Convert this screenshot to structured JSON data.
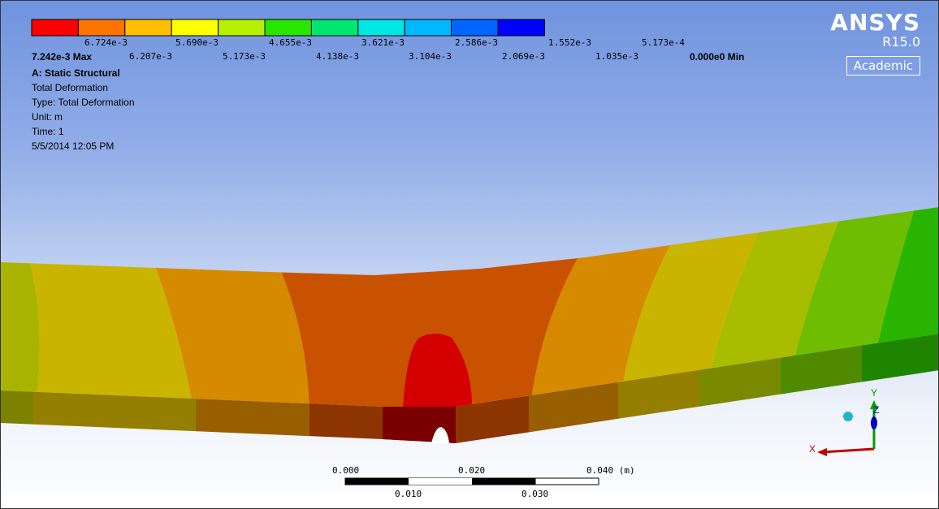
{
  "legend": {
    "colors": [
      "#ff0000",
      "#ff7300",
      "#ffbf00",
      "#ffff00",
      "#b7f000",
      "#29e600",
      "#00e66e",
      "#00e6e0",
      "#00b8ff",
      "#0066ff",
      "#0000ff"
    ],
    "top_labels": [
      "6.724e-3",
      "5.690e-3",
      "4.655e-3",
      "3.621e-3",
      "2.586e-3",
      "1.552e-3",
      "5.173e-4"
    ],
    "max_label": "7.242e-3 Max",
    "bottom_labels": [
      "6.207e-3",
      "5.173e-3",
      "4.138e-3",
      "3.104e-3",
      "2.069e-3",
      "1.035e-3"
    ],
    "min_label": "0.000e0 Min"
  },
  "info": {
    "title": "A: Static Structural",
    "result": "Total Deformation",
    "type": "Type: Total Deformation",
    "unit": "Unit: m",
    "time": "Time: 1",
    "date": "5/5/2014 12:05 PM"
  },
  "logo": {
    "brand": "ANSYS",
    "release": "R15.0",
    "edition": "Academic"
  },
  "ruler": {
    "top_labels": [
      "0.000",
      "0.020",
      "0.040 (m)"
    ],
    "bottom_labels": [
      "0.010",
      "0.030"
    ]
  },
  "triad": {
    "x_label": "X",
    "y_label": "Y",
    "z_label": "Z",
    "x_color": "#c00000",
    "y_color": "#00a000",
    "z_color": "#0000c0"
  },
  "contour_colors": {
    "max": "#d40000",
    "high": "#c95200",
    "mid_high": "#d68a00",
    "mid": "#c9b400",
    "mid_low": "#a8bd00",
    "low": "#6fbd00",
    "lowest": "#29b400"
  }
}
